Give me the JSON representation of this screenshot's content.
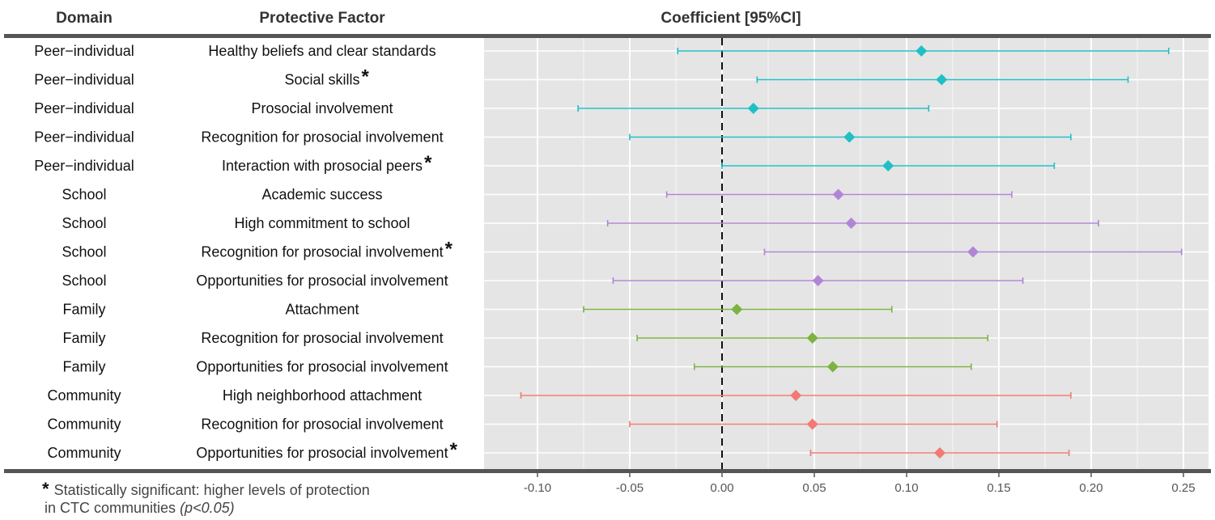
{
  "headers": {
    "domain": "Domain",
    "factor": "Protective Factor",
    "coef": "Coefficient [95%CI]"
  },
  "footnote": {
    "star": "*",
    "line1": "Statistically significant: higher levels of protection",
    "line2": "in CTC communities",
    "pvalue": "(p<0.05)"
  },
  "colors": {
    "Peer-individual": "#20bfc6",
    "School": "#b185d6",
    "Family": "#7cb342",
    "Community": "#f27a73",
    "panel": "#e5e5e5",
    "grid": "#ffffff"
  },
  "chart_data": {
    "type": "forest",
    "xlim": [
      -0.12,
      0.26
    ],
    "x_ticks": [
      -0.1,
      -0.05,
      0.0,
      0.05,
      0.1,
      0.15,
      0.2,
      0.25
    ],
    "x_tick_labels": [
      "-0.10",
      "-0.05",
      "0.00",
      "0.05",
      "0.10",
      "0.15",
      "0.20",
      "0.25"
    ],
    "reference_line": 0,
    "rows": [
      {
        "domain": "Peer−individual",
        "group": "Peer-individual",
        "factor": "Healthy beliefs and clear standards",
        "sig": false,
        "est": 0.108,
        "lo": -0.024,
        "hi": 0.242
      },
      {
        "domain": "Peer−individual",
        "group": "Peer-individual",
        "factor": "Social skills",
        "sig": true,
        "est": 0.119,
        "lo": 0.019,
        "hi": 0.22
      },
      {
        "domain": "Peer−individual",
        "group": "Peer-individual",
        "factor": "Prosocial involvement",
        "sig": false,
        "est": 0.017,
        "lo": -0.078,
        "hi": 0.112
      },
      {
        "domain": "Peer−individual",
        "group": "Peer-individual",
        "factor": "Recognition for prosocial involvement",
        "sig": false,
        "est": 0.069,
        "lo": -0.05,
        "hi": 0.189
      },
      {
        "domain": "Peer−individual",
        "group": "Peer-individual",
        "factor": "Interaction with prosocial peers",
        "sig": true,
        "est": 0.09,
        "lo": 0.0,
        "hi": 0.18
      },
      {
        "domain": "School",
        "group": "School",
        "factor": "Academic success",
        "sig": false,
        "est": 0.063,
        "lo": -0.03,
        "hi": 0.157
      },
      {
        "domain": "School",
        "group": "School",
        "factor": "High commitment to school",
        "sig": false,
        "est": 0.07,
        "lo": -0.062,
        "hi": 0.204
      },
      {
        "domain": "School",
        "group": "School",
        "factor": "Recognition for prosocial involvement",
        "sig": true,
        "est": 0.136,
        "lo": 0.023,
        "hi": 0.249
      },
      {
        "domain": "School",
        "group": "School",
        "factor": "Opportunities for prosocial involvement",
        "sig": false,
        "est": 0.052,
        "lo": -0.059,
        "hi": 0.163
      },
      {
        "domain": "Family",
        "group": "Family",
        "factor": "Attachment",
        "sig": false,
        "est": 0.008,
        "lo": -0.075,
        "hi": 0.092
      },
      {
        "domain": "Family",
        "group": "Family",
        "factor": "Recognition for prosocial involvement",
        "sig": false,
        "est": 0.049,
        "lo": -0.046,
        "hi": 0.144
      },
      {
        "domain": "Family",
        "group": "Family",
        "factor": "Opportunities for prosocial involvement",
        "sig": false,
        "est": 0.06,
        "lo": -0.015,
        "hi": 0.135
      },
      {
        "domain": "Community",
        "group": "Community",
        "factor": "High neighborhood attachment",
        "sig": false,
        "est": 0.04,
        "lo": -0.109,
        "hi": 0.189
      },
      {
        "domain": "Community",
        "group": "Community",
        "factor": "Recognition for prosocial involvement",
        "sig": false,
        "est": 0.049,
        "lo": -0.05,
        "hi": 0.149
      },
      {
        "domain": "Community",
        "group": "Community",
        "factor": "Opportunities for prosocial involvement",
        "sig": true,
        "est": 0.118,
        "lo": 0.048,
        "hi": 0.188
      }
    ]
  }
}
